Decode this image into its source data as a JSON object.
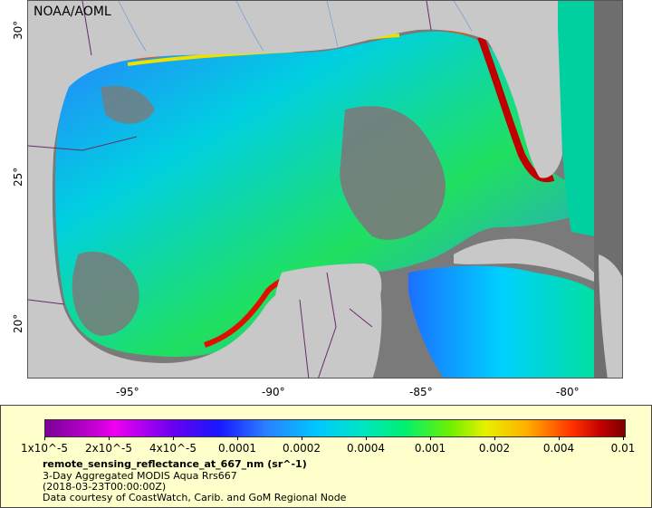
{
  "map": {
    "credit": "NOAA/AOML",
    "lat_ticks": [
      "30°",
      "25°",
      "20°"
    ],
    "lon_ticks": [
      "-95°",
      "-90°",
      "-85°",
      "-80°"
    ],
    "colors": {
      "land": "#c8c8c8",
      "nodata_ocean": "#7a7a7a",
      "border": "#6a2a6a",
      "river": "#7aa0d8"
    }
  },
  "colorbar": {
    "tick_labels": [
      "1x10^-5",
      "2x10^-5",
      "4x10^-5",
      "0.0001",
      "0.0002",
      "0.0004",
      "0.001",
      "0.002",
      "0.004",
      "0.01"
    ]
  },
  "legend": {
    "title": "remote_sensing_reflectance_at_667_nm (sr^-1)",
    "line1": "3-Day Aggregated MODIS Aqua Rrs667",
    "line2": "(2018-03-23T00:00:00Z)",
    "line3": "Data courtesy of CoastWatch, Carib. and GoM Regional Node"
  }
}
